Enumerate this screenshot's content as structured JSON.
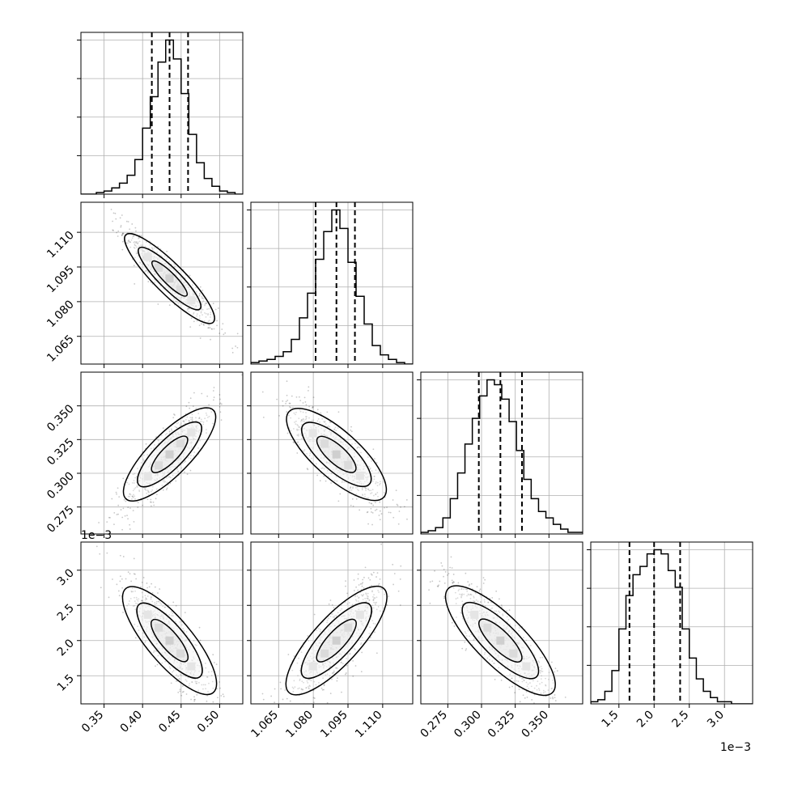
{
  "chart_data": {
    "type": "corner",
    "n_params": 4,
    "params": [
      {
        "range": [
          0.32,
          0.53
        ],
        "ticks": [
          0.35,
          0.4,
          0.45,
          0.5
        ],
        "tick_labels": [
          "0.35",
          "0.40",
          "0.45",
          "0.50"
        ],
        "quantiles": [
          0.412,
          0.435,
          0.459
        ],
        "offset_label": ""
      },
      {
        "range": [
          1.053,
          1.123
        ],
        "ticks": [
          1.065,
          1.08,
          1.095,
          1.11
        ],
        "tick_labels": [
          "1.065",
          "1.080",
          "1.095",
          "1.110"
        ],
        "quantiles": [
          1.081,
          1.09,
          1.098
        ],
        "offset_label": ""
      },
      {
        "range": [
          0.255,
          0.375
        ],
        "ticks": [
          0.275,
          0.3,
          0.325,
          0.35
        ],
        "tick_labels": [
          "0.275",
          "0.300",
          "0.325",
          "0.350"
        ],
        "quantiles": [
          0.298,
          0.314,
          0.33
        ],
        "offset_label": ""
      },
      {
        "range": [
          1.1,
          3.4
        ],
        "ticks": [
          1.5,
          2.0,
          2.5,
          3.0
        ],
        "tick_labels": [
          "1.5",
          "2.0",
          "2.5",
          "3.0"
        ],
        "quantiles": [
          1.65,
          2.0,
          2.37
        ],
        "offset_label": "1e−3"
      }
    ],
    "histograms": [
      {
        "edges_range": [
          0.32,
          0.53
        ],
        "counts": [
          0,
          0,
          1,
          2,
          4,
          7,
          12,
          22,
          42,
          62,
          84,
          98,
          86,
          64,
          38,
          20,
          10,
          5,
          2,
          1,
          0
        ]
      },
      {
        "edges_range": [
          1.053,
          1.123
        ],
        "counts": [
          1,
          2,
          3,
          5,
          8,
          16,
          30,
          46,
          68,
          86,
          100,
          88,
          66,
          44,
          26,
          12,
          6,
          3,
          1,
          0
        ]
      },
      {
        "edges_range": [
          0.255,
          0.375
        ],
        "counts": [
          1,
          2,
          4,
          10,
          22,
          38,
          56,
          72,
          86,
          96,
          93,
          84,
          70,
          52,
          34,
          22,
          14,
          10,
          6,
          3,
          1,
          1
        ]
      },
      {
        "edges_range": [
          1.1,
          3.4
        ],
        "counts": [
          1,
          2,
          6,
          16,
          36,
          52,
          62,
          66,
          72,
          74,
          72,
          64,
          56,
          36,
          22,
          12,
          6,
          3,
          1,
          1,
          0,
          0,
          0
        ]
      }
    ],
    "correlations": [
      [
        1,
        -0.92,
        0.85,
        -0.85
      ],
      [
        -0.92,
        1,
        -0.82,
        0.85
      ],
      [
        0.85,
        -0.82,
        1,
        -0.85
      ],
      [
        -0.85,
        0.85,
        -0.85,
        1
      ]
    ],
    "grid": true
  }
}
